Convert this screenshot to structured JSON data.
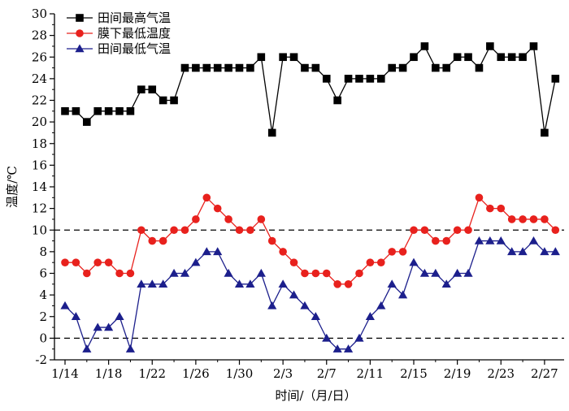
{
  "chart_data": {
    "type": "line",
    "title": "",
    "xlabel": "时间/（月/日）",
    "ylabel": "温度/℃",
    "ylim": [
      -2,
      30
    ],
    "y_ticks": [
      -2,
      0,
      2,
      4,
      6,
      8,
      10,
      12,
      14,
      16,
      18,
      20,
      22,
      24,
      26,
      28,
      30
    ],
    "x_range": [
      0,
      45.5
    ],
    "x_ticks": [
      {
        "x": 0,
        "label": "1/14"
      },
      {
        "x": 4,
        "label": "1/18"
      },
      {
        "x": 8,
        "label": "1/22"
      },
      {
        "x": 12,
        "label": "1/26"
      },
      {
        "x": 16,
        "label": "1/30"
      },
      {
        "x": 20,
        "label": "2/3"
      },
      {
        "x": 24,
        "label": "2/7"
      },
      {
        "x": 28,
        "label": "2/11"
      },
      {
        "x": 32,
        "label": "2/15"
      },
      {
        "x": 36,
        "label": "2/19"
      },
      {
        "x": 40,
        "label": "2/23"
      },
      {
        "x": 44,
        "label": "2/27"
      }
    ],
    "reference_lines": [
      0,
      10
    ],
    "legend_position": "top-left",
    "series": [
      {
        "name": "田间最高气温",
        "color": "#000000",
        "marker": "square",
        "values": [
          21,
          21,
          20,
          21,
          21,
          21,
          21,
          23,
          23,
          22,
          22,
          25,
          25,
          25,
          25,
          25,
          25,
          25,
          26,
          19,
          26,
          26,
          25,
          25,
          24,
          22,
          24,
          24,
          24,
          24,
          25,
          25,
          26,
          27,
          25,
          25,
          26,
          26,
          25,
          27,
          26,
          26,
          26,
          27,
          19,
          24
        ]
      },
      {
        "name": "膜下最低温度",
        "color": "#e8211d",
        "marker": "circle",
        "values": [
          7,
          7,
          6,
          7,
          7,
          6,
          6,
          10,
          9,
          9,
          10,
          10,
          11,
          13,
          12,
          11,
          10,
          10,
          11,
          9,
          8,
          7,
          6,
          6,
          6,
          5,
          5,
          6,
          7,
          7,
          8,
          8,
          10,
          10,
          9,
          9,
          10,
          10,
          13,
          12,
          12,
          11,
          11,
          11,
          11,
          10
        ]
      },
      {
        "name": "田间最低气温",
        "color": "#1c1f8c",
        "marker": "triangle",
        "values": [
          3,
          2,
          -1,
          1,
          1,
          2,
          -1,
          5,
          5,
          5,
          6,
          6,
          7,
          8,
          8,
          6,
          5,
          5,
          6,
          3,
          5,
          4,
          3,
          2,
          0,
          -1,
          -1,
          0,
          2,
          3,
          5,
          4,
          7,
          6,
          6,
          5,
          6,
          6,
          9,
          9,
          9,
          8,
          8,
          9,
          8,
          8
        ]
      }
    ]
  }
}
